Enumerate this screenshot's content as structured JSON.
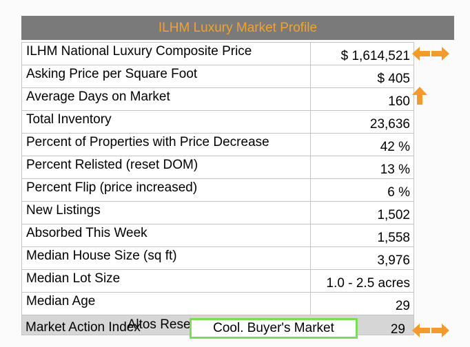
{
  "title": "ILHM Luxury Market Profile",
  "rows": [
    {
      "label": "ILHM National Luxury Composite Price",
      "value": "$ 1,614,521"
    },
    {
      "label": "Asking Price per Square Foot",
      "value": "$ 405"
    },
    {
      "label": "Average Days on Market",
      "value": "160"
    },
    {
      "label": "Total Inventory",
      "value": "23,636"
    },
    {
      "label": "Percent of Properties with Price Decrease",
      "value": "42 %"
    },
    {
      "label": "Percent Relisted (reset DOM)",
      "value": "13 %"
    },
    {
      "label": "Percent Flip (price increased)",
      "value": "6 %"
    },
    {
      "label": "New Listings",
      "value": "1,502"
    },
    {
      "label": "Absorbed This Week",
      "value": "1,558"
    },
    {
      "label": "Median House Size (sq ft)",
      "value": "3,976"
    },
    {
      "label": "Median Lot Size",
      "value": "1.0 - 2.5 acres"
    },
    {
      "label": "Median Age",
      "value": "29"
    }
  ],
  "section_title": "Altos Research Value Statistics",
  "market_action": {
    "label": "Market Action Index",
    "status": "Cool.  Buyer's Market",
    "value": "29"
  },
  "colors": {
    "title_text": "#f2a32e",
    "title_bg": "#7a7a7a",
    "arrow": "#f39a2c",
    "status_border": "#7bdc5a",
    "section_bg": "#d6d6d6"
  },
  "icons": {
    "row0": "left-right-arrows-icon",
    "row2": "up-arrow-icon",
    "market_action": "left-right-arrows-icon"
  }
}
